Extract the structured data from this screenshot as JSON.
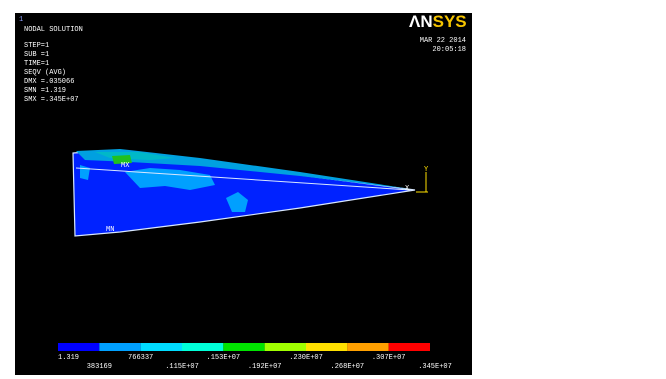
{
  "window": {
    "number": "1",
    "title": "NODAL SOLUTION",
    "info": [
      "STEP=1",
      "SUB =1",
      "TIME=1",
      "SEQV      (AVG)",
      "DMX =.035066",
      "SMN =1.319",
      "SMX =.345E+07"
    ],
    "logo_a": "ΛN",
    "logo_b": "SYS",
    "date": "MAR 22 2014",
    "time": "20:05:18",
    "model_labels": {
      "mn": "MN",
      "mx": "MX",
      "x": "X",
      "y": "Y"
    }
  },
  "legend": {
    "labels": [
      "1.319",
      "383169",
      "766337",
      ".115E+07",
      ".153E+07",
      ".192E+07",
      ".230E+07",
      ".268E+07",
      ".307E+07",
      ".345E+07"
    ],
    "colors": [
      "#0000ff",
      "#00a0ff",
      "#00dcff",
      "#00ffd8",
      "#00e400",
      "#a0ff00",
      "#ffe000",
      "#ffa000",
      "#ff0000"
    ]
  }
}
